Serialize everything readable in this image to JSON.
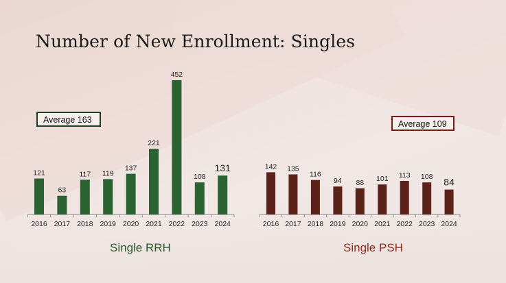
{
  "page": {
    "title": "Number of New Enrollment: Singles"
  },
  "colors": {
    "rrh_bar": "#2a6331",
    "psh_bar": "#5a2219",
    "axis": "#8a8a8a"
  },
  "chart_data": [
    {
      "type": "bar",
      "name": "Single RRH",
      "categories": [
        "2016",
        "2017",
        "2018",
        "2019",
        "2020",
        "2021",
        "2022",
        "2023",
        "2024"
      ],
      "values": [
        121,
        63,
        117,
        119,
        137,
        221,
        452,
        108,
        131
      ],
      "average_label": "Average 163",
      "subtitle": "Single RRH"
    },
    {
      "type": "bar",
      "name": "Single PSH",
      "categories": [
        "2016",
        "2017",
        "2018",
        "2019",
        "2020",
        "2021",
        "2022",
        "2023",
        "2024"
      ],
      "values": [
        142,
        135,
        116,
        94,
        88,
        101,
        113,
        108,
        84
      ],
      "average_label": "Average 109",
      "subtitle": "Single PSH"
    }
  ]
}
